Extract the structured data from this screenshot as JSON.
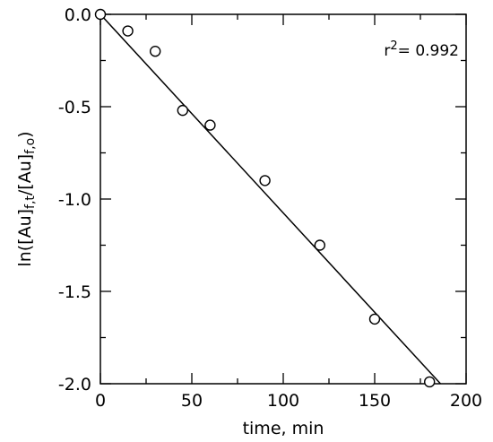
{
  "chart_data": {
    "type": "scatter",
    "xlabel": "time, min",
    "ylabel": {
      "parts": [
        {
          "t": "ln([Au]",
          "sub": false
        },
        {
          "t": "f,t",
          "sub": true
        },
        {
          "t": "/[Au]",
          "sub": false
        },
        {
          "t": "f,o",
          "sub": true
        },
        {
          "t": ")",
          "sub": false
        }
      ]
    },
    "xlim": [
      0,
      200
    ],
    "ylim": [
      -2.0,
      0.0
    ],
    "xticks": [
      0,
      50,
      100,
      150,
      200
    ],
    "xtick_labels": [
      "0",
      "50",
      "100",
      "150",
      "200"
    ],
    "yticks": [
      0.0,
      -0.5,
      -1.0,
      -1.5,
      -2.0
    ],
    "ytick_labels": [
      "0.0",
      "-0.5",
      "-1.0",
      "-1.5",
      "-2.0"
    ],
    "grid": false,
    "series": [
      {
        "marker": "open-circle",
        "x": [
          0,
          15,
          30,
          45,
          60,
          90,
          120,
          150,
          180
        ],
        "y": [
          0.0,
          -0.09,
          -0.2,
          -0.52,
          -0.6,
          -0.9,
          -1.25,
          -1.65,
          -1.99
        ]
      }
    ],
    "fit_line": {
      "x": [
        0,
        186
      ],
      "y": [
        0.0,
        -2.0
      ]
    },
    "annotation": {
      "prefix": "r",
      "sup": "2",
      "suffix": "=  0.992"
    }
  }
}
